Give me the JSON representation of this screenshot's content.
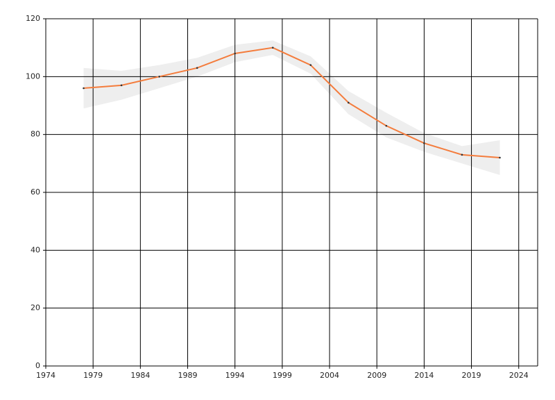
{
  "chart_data": {
    "type": "line",
    "x": [
      1978,
      1982,
      1986,
      1990,
      1994,
      1998,
      2002,
      2006,
      2010,
      2014,
      2018,
      2022
    ],
    "series": [
      {
        "color": "#f47c3c",
        "values": [
          96,
          97,
          100,
          103,
          108,
          110,
          104,
          91,
          83,
          77,
          73,
          72
        ]
      }
    ],
    "band": {
      "color": "#eeeeee",
      "lower": [
        89,
        92,
        96,
        100,
        105,
        107.5,
        101,
        87,
        79,
        74,
        70,
        66
      ],
      "upper": [
        103,
        102,
        104,
        106.5,
        111,
        112.5,
        107,
        95,
        87.5,
        80.5,
        76,
        78
      ]
    },
    "xlim": [
      1974,
      2026
    ],
    "xticks": [
      1974,
      1979,
      1984,
      1989,
      1994,
      1999,
      2004,
      2009,
      2014,
      2019,
      2024
    ],
    "ylim": [
      0,
      120
    ],
    "yticks": [
      0,
      20,
      40,
      60,
      80,
      100,
      120
    ],
    "grid": true
  }
}
